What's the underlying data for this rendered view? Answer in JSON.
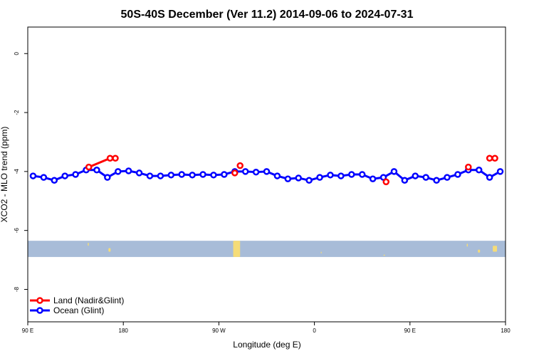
{
  "chart_data": {
    "type": "line",
    "title": "50S-40S December (Ver 11.2)   2014-09-06 to 2024-07-31",
    "xlabel": "Longitude (deg E)",
    "ylabel": "XCO2 - MLO trend (ppm)",
    "xlim": [
      90,
      540
    ],
    "ylim": [
      -9.1,
      0.9
    ],
    "x_ticks": [
      {
        "value": 90,
        "label": "90 E"
      },
      {
        "value": 180,
        "label": "180"
      },
      {
        "value": 270,
        "label": "90 W"
      },
      {
        "value": 360,
        "label": "0"
      },
      {
        "value": 450,
        "label": "90 E"
      },
      {
        "value": 540,
        "label": "180"
      }
    ],
    "y_ticks": [
      {
        "value": 0,
        "label": "0"
      },
      {
        "value": -2,
        "label": "-2"
      },
      {
        "value": -4,
        "label": "-4"
      },
      {
        "value": -6,
        "label": "-6"
      },
      {
        "value": -8,
        "label": "-8"
      }
    ],
    "series": [
      {
        "name": "Land (Nadir&Glint)",
        "color": "#ff0000",
        "segments": [
          [
            [
              147.5,
              -3.85
            ],
            [
              167.5,
              -3.55
            ],
            [
              172.5,
              -3.55
            ]
          ],
          [
            [
              285,
              -4.05
            ]
          ],
          [
            [
              290,
              -3.8
            ]
          ],
          [
            [
              427.5,
              -4.35
            ]
          ],
          [
            [
              505,
              -3.85
            ]
          ],
          [
            [
              525,
              -3.55
            ]
          ],
          [
            [
              530,
              -3.55
            ]
          ]
        ]
      },
      {
        "name": "Ocean (Glint)",
        "color": "#0000ff",
        "x": [
          95,
          105,
          115,
          125,
          135,
          145,
          155,
          165,
          175,
          185,
          195,
          205,
          215,
          225,
          235,
          245,
          255,
          265,
          275,
          285,
          295,
          305,
          315,
          325,
          335,
          345,
          355,
          365,
          375,
          385,
          395,
          405,
          415,
          425,
          435,
          445,
          455,
          465,
          475,
          485,
          495,
          505,
          515,
          525,
          535
        ],
        "values": [
          -4.15,
          -4.2,
          -4.3,
          -4.15,
          -4.1,
          -3.95,
          -3.95,
          -4.2,
          -4.0,
          -3.98,
          -4.05,
          -4.15,
          -4.15,
          -4.12,
          -4.1,
          -4.12,
          -4.1,
          -4.12,
          -4.1,
          -4.0,
          -4.0,
          -4.02,
          -4.0,
          -4.15,
          -4.25,
          -4.22,
          -4.3,
          -4.2,
          -4.12,
          -4.15,
          -4.1,
          -4.1,
          -4.25,
          -4.2,
          -4.0,
          -4.3,
          -4.15,
          -4.2,
          -4.3,
          -4.2,
          -4.1,
          -3.95,
          -3.95,
          -4.2,
          -4.0
        ]
      }
    ],
    "map_strip": {
      "y_range": [
        -6.35,
        -6.9
      ],
      "ocean_color": "#a8bcd8",
      "land_color": "#f5dc78",
      "land_patches": [
        {
          "x": [
            146.5,
            147.5
          ],
          "y": [
            -6.42,
            -6.52
          ]
        },
        {
          "x": [
            166,
            168
          ],
          "y": [
            -6.6,
            -6.72
          ]
        },
        {
          "x": [
            283.5,
            290
          ],
          "y": [
            -6.35,
            -6.9
          ]
        },
        {
          "x": [
            514,
            516
          ],
          "y": [
            -6.65,
            -6.75
          ]
        },
        {
          "x": [
            425,
            426.5
          ],
          "y": [
            -6.82,
            -6.86
          ]
        },
        {
          "x": [
            503.5,
            504.5
          ],
          "y": [
            -6.45,
            -6.55
          ]
        },
        {
          "x": [
            528,
            532
          ],
          "y": [
            -6.52,
            -6.72
          ]
        },
        {
          "x": [
            366,
            366.8
          ],
          "y": [
            -6.72,
            -6.78
          ]
        }
      ]
    },
    "legend": {
      "position": "bottom-left",
      "entries": [
        "Land (Nadir&Glint)",
        "Ocean (Glint)"
      ]
    }
  }
}
